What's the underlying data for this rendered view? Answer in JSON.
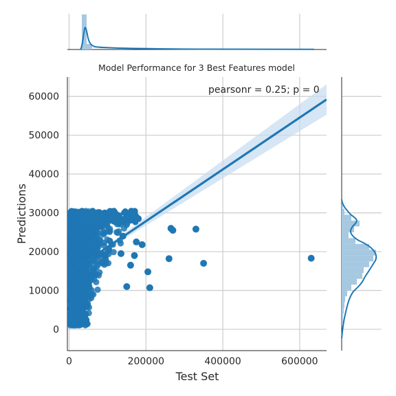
{
  "chart_data": {
    "type": "scatter",
    "title": "Model Performance for 3 Best Features model",
    "xlabel": "Test Set",
    "ylabel": "Predictions",
    "xlim": [
      -4500,
      670000
    ],
    "ylim": [
      -5500,
      65000
    ],
    "x_ticks": [
      0,
      200000,
      400000,
      600000
    ],
    "y_ticks": [
      0,
      10000,
      20000,
      30000,
      40000,
      50000,
      60000
    ],
    "x_tick_labels": [
      "0",
      "200000",
      "400000",
      "600000"
    ],
    "y_tick_labels": [
      "0",
      "10000",
      "20000",
      "30000",
      "40000",
      "50000",
      "60000"
    ],
    "annotation": "pearsonr = 0.25; p = 0",
    "regression_line": {
      "x": [
        -4500,
        670000
      ],
      "y": [
        14200,
        59200
      ]
    },
    "outliers": [
      {
        "x": 630000,
        "y": 18300
      },
      {
        "x": 350000,
        "y": 17000
      },
      {
        "x": 330000,
        "y": 25800
      },
      {
        "x": 265000,
        "y": 26000
      },
      {
        "x": 260000,
        "y": 18200
      },
      {
        "x": 270000,
        "y": 25500
      },
      {
        "x": 210000,
        "y": 10700
      },
      {
        "x": 205000,
        "y": 14800
      },
      {
        "x": 190000,
        "y": 21800
      },
      {
        "x": 180000,
        "y": 28500
      },
      {
        "x": 175000,
        "y": 22500
      },
      {
        "x": 170000,
        "y": 19000
      },
      {
        "x": 160000,
        "y": 16500
      },
      {
        "x": 150000,
        "y": 11000
      },
      {
        "x": 140000,
        "y": 24000
      },
      {
        "x": 135000,
        "y": 19500
      }
    ],
    "grid": true,
    "marginal_x": {
      "type": "histogram+kde",
      "peak_x": 15000
    },
    "marginal_y": {
      "type": "histogram+kde",
      "peak_y": 19500
    },
    "colors": {
      "primary": "#1f77b4",
      "hist": "#a6c8e0",
      "grid": "#cccccc",
      "band": "#c6dbef"
    }
  }
}
